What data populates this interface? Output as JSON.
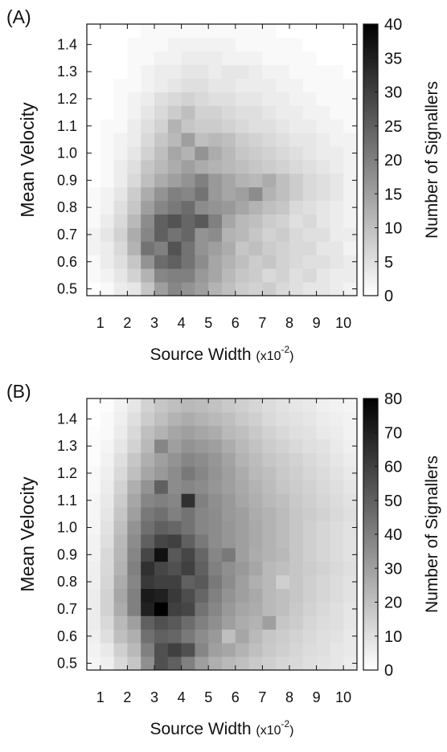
{
  "chart_data": [
    {
      "type": "heatmap",
      "panel_label": "(A)",
      "xlabel": "Source Width",
      "xlabel_unit": "(x10",
      "xlabel_exp": "-2",
      "xlabel_close": ")",
      "ylabel": "Mean Velocity",
      "colorbar_label": "Number of Signallers",
      "x_ticks": [
        "1",
        "2",
        "3",
        "4",
        "5",
        "6",
        "7",
        "8",
        "9",
        "10"
      ],
      "y_ticks": [
        "0.5",
        "0.6",
        "0.7",
        "0.8",
        "0.9",
        "1.0",
        "1.1",
        "1.2",
        "1.3",
        "1.4"
      ],
      "colorbar_ticks": [
        "0",
        "5",
        "10",
        "15",
        "20",
        "25",
        "30",
        "35",
        "40"
      ],
      "colorbar_range": [
        0,
        40
      ],
      "xlim": [
        0.5,
        10.5
      ],
      "ylim": [
        0.475,
        1.475
      ],
      "x_bins": [
        0.75,
        1.25,
        1.75,
        2.25,
        2.75,
        3.25,
        3.75,
        4.25,
        4.75,
        5.25,
        5.75,
        6.25,
        6.75,
        7.25,
        7.75,
        8.25,
        8.75,
        9.25,
        9.75,
        10.25
      ],
      "y_bins": [
        0.5,
        0.55,
        0.6,
        0.65,
        0.7,
        0.75,
        0.8,
        0.85,
        0.9,
        0.95,
        1.0,
        1.05,
        1.1,
        1.15,
        1.2,
        1.25,
        1.3,
        1.35,
        1.4,
        1.45
      ],
      "grayscale": {
        "low": "#ffffff",
        "high": "#000000"
      },
      "values": [
        [
          0,
          1,
          3,
          4,
          9,
          15,
          19,
          17,
          15,
          12,
          10,
          8,
          7,
          8,
          6,
          5,
          4,
          4,
          3,
          2
        ],
        [
          1,
          2,
          4,
          7,
          12,
          19,
          20,
          20,
          16,
          14,
          11,
          9,
          8,
          6,
          7,
          5,
          6,
          4,
          3,
          3
        ],
        [
          1,
          3,
          5,
          9,
          17,
          23,
          25,
          22,
          18,
          14,
          12,
          10,
          8,
          9,
          7,
          6,
          5,
          5,
          4,
          3
        ],
        [
          2,
          3,
          6,
          12,
          22,
          20,
          27,
          22,
          17,
          15,
          13,
          9,
          10,
          8,
          7,
          6,
          6,
          4,
          4,
          2
        ],
        [
          2,
          4,
          7,
          13,
          19,
          25,
          22,
          24,
          17,
          18,
          12,
          11,
          9,
          7,
          8,
          6,
          5,
          5,
          3,
          3
        ],
        [
          1,
          3,
          6,
          11,
          18,
          25,
          27,
          24,
          26,
          20,
          14,
          11,
          10,
          8,
          7,
          5,
          6,
          4,
          3,
          2
        ],
        [
          1,
          2,
          5,
          9,
          15,
          19,
          21,
          23,
          18,
          17,
          16,
          14,
          12,
          10,
          9,
          6,
          5,
          4,
          3,
          2
        ],
        [
          1,
          2,
          4,
          8,
          13,
          17,
          20,
          19,
          22,
          16,
          14,
          15,
          18,
          12,
          10,
          8,
          6,
          5,
          4,
          2
        ],
        [
          0,
          1,
          3,
          6,
          10,
          13,
          15,
          17,
          20,
          16,
          14,
          12,
          11,
          13,
          10,
          8,
          6,
          5,
          4,
          2
        ],
        [
          0,
          1,
          3,
          5,
          9,
          11,
          13,
          15,
          13,
          12,
          11,
          10,
          9,
          8,
          7,
          6,
          5,
          4,
          3,
          2
        ],
        [
          0,
          1,
          2,
          4,
          7,
          10,
          14,
          12,
          17,
          13,
          11,
          9,
          8,
          7,
          6,
          5,
          4,
          3,
          3,
          2
        ],
        [
          0,
          1,
          2,
          3,
          6,
          9,
          11,
          15,
          10,
          11,
          10,
          8,
          7,
          6,
          5,
          4,
          4,
          3,
          2,
          2
        ],
        [
          0,
          1,
          1,
          3,
          5,
          7,
          12,
          9,
          8,
          8,
          7,
          6,
          5,
          5,
          4,
          3,
          3,
          2,
          2,
          1
        ],
        [
          0,
          0,
          1,
          2,
          4,
          6,
          8,
          10,
          7,
          7,
          6,
          5,
          5,
          4,
          3,
          3,
          2,
          2,
          1,
          1
        ],
        [
          0,
          0,
          1,
          2,
          3,
          5,
          6,
          7,
          6,
          5,
          5,
          4,
          4,
          3,
          3,
          2,
          2,
          1,
          1,
          1
        ],
        [
          0,
          0,
          1,
          1,
          2,
          3,
          4,
          5,
          5,
          4,
          4,
          3,
          3,
          3,
          2,
          2,
          1,
          1,
          1,
          1
        ],
        [
          0,
          0,
          0,
          1,
          2,
          3,
          3,
          4,
          4,
          3,
          4,
          4,
          3,
          2,
          2,
          1,
          1,
          1,
          1,
          0
        ],
        [
          0,
          0,
          0,
          1,
          1,
          2,
          2,
          3,
          3,
          3,
          2,
          2,
          2,
          1,
          1,
          1,
          1,
          0,
          0,
          0
        ],
        [
          0,
          0,
          0,
          1,
          1,
          1,
          2,
          2,
          2,
          2,
          2,
          1,
          1,
          1,
          1,
          1,
          0,
          0,
          0,
          0
        ],
        [
          0,
          0,
          0,
          0,
          1,
          1,
          1,
          1,
          1,
          1,
          1,
          1,
          1,
          1,
          0,
          0,
          0,
          0,
          0,
          0
        ]
      ]
    },
    {
      "type": "heatmap",
      "panel_label": "(B)",
      "xlabel": "Source Width",
      "xlabel_unit": "(x10",
      "xlabel_exp": "-2",
      "xlabel_close": ")",
      "ylabel": "Mean Velocity",
      "colorbar_label": "Number of Signallers",
      "x_ticks": [
        "1",
        "2",
        "3",
        "4",
        "5",
        "6",
        "7",
        "8",
        "9",
        "10"
      ],
      "y_ticks": [
        "0.5",
        "0.6",
        "0.7",
        "0.8",
        "0.9",
        "1.0",
        "1.1",
        "1.2",
        "1.3",
        "1.4"
      ],
      "colorbar_ticks": [
        "0",
        "10",
        "20",
        "30",
        "40",
        "50",
        "60",
        "70",
        "80"
      ],
      "colorbar_range": [
        0,
        80
      ],
      "xlim": [
        0.5,
        10.5
      ],
      "ylim": [
        0.475,
        1.475
      ],
      "x_bins": [
        0.75,
        1.25,
        1.75,
        2.25,
        2.75,
        3.25,
        3.75,
        4.25,
        4.75,
        5.25,
        5.75,
        6.25,
        6.75,
        7.25,
        7.75,
        8.25,
        8.75,
        9.25,
        9.75,
        10.25
      ],
      "y_bins": [
        0.5,
        0.55,
        0.6,
        0.65,
        0.7,
        0.75,
        0.8,
        0.85,
        0.9,
        0.95,
        1.0,
        1.05,
        1.1,
        1.15,
        1.2,
        1.25,
        1.3,
        1.35,
        1.4,
        1.45
      ],
      "grayscale": {
        "low": "#ffffff",
        "high": "#000000"
      },
      "values": [
        [
          3,
          5,
          12,
          18,
          35,
          55,
          50,
          40,
          30,
          25,
          22,
          20,
          17,
          15,
          13,
          12,
          10,
          9,
          8,
          6
        ],
        [
          4,
          7,
          15,
          22,
          40,
          55,
          60,
          55,
          38,
          30,
          28,
          24,
          20,
          17,
          15,
          13,
          11,
          10,
          8,
          7
        ],
        [
          5,
          10,
          20,
          25,
          45,
          50,
          48,
          42,
          36,
          32,
          20,
          28,
          22,
          18,
          16,
          14,
          12,
          10,
          9,
          7
        ],
        [
          6,
          12,
          22,
          30,
          50,
          55,
          52,
          46,
          40,
          35,
          30,
          26,
          24,
          30,
          18,
          16,
          13,
          11,
          10,
          8
        ],
        [
          6,
          14,
          26,
          40,
          70,
          80,
          60,
          58,
          44,
          38,
          32,
          28,
          26,
          22,
          20,
          17,
          14,
          12,
          10,
          8
        ],
        [
          6,
          14,
          28,
          40,
          72,
          70,
          62,
          56,
          48,
          40,
          34,
          30,
          27,
          22,
          20,
          18,
          15,
          13,
          11,
          9
        ],
        [
          5,
          13,
          26,
          38,
          62,
          60,
          60,
          50,
          52,
          42,
          36,
          30,
          25,
          22,
          15,
          18,
          15,
          13,
          11,
          9
        ],
        [
          5,
          12,
          24,
          40,
          65,
          58,
          55,
          60,
          50,
          40,
          35,
          32,
          28,
          22,
          20,
          18,
          16,
          14,
          12,
          10
        ],
        [
          4,
          12,
          23,
          38,
          58,
          75,
          52,
          58,
          48,
          38,
          42,
          30,
          26,
          24,
          22,
          18,
          15,
          13,
          11,
          9
        ],
        [
          4,
          10,
          22,
          36,
          50,
          58,
          60,
          50,
          42,
          36,
          33,
          30,
          27,
          24,
          21,
          18,
          15,
          13,
          11,
          9
        ],
        [
          3,
          9,
          20,
          34,
          45,
          50,
          48,
          44,
          38,
          36,
          33,
          30,
          27,
          24,
          21,
          18,
          15,
          13,
          11,
          9
        ],
        [
          3,
          8,
          18,
          30,
          42,
          45,
          40,
          44,
          38,
          36,
          32,
          30,
          26,
          24,
          21,
          18,
          16,
          14,
          12,
          10
        ],
        [
          3,
          7,
          16,
          28,
          38,
          40,
          38,
          65,
          40,
          35,
          32,
          28,
          25,
          22,
          20,
          17,
          15,
          13,
          11,
          9
        ],
        [
          2,
          6,
          14,
          25,
          34,
          50,
          36,
          38,
          36,
          33,
          30,
          27,
          24,
          21,
          18,
          16,
          14,
          12,
          10,
          8
        ],
        [
          2,
          5,
          12,
          20,
          28,
          32,
          36,
          42,
          38,
          34,
          30,
          26,
          22,
          20,
          17,
          15,
          13,
          11,
          9,
          7
        ],
        [
          1,
          4,
          10,
          18,
          25,
          30,
          34,
          38,
          36,
          33,
          29,
          24,
          21,
          18,
          16,
          14,
          12,
          10,
          8,
          6
        ],
        [
          1,
          3,
          8,
          14,
          22,
          38,
          30,
          34,
          32,
          30,
          26,
          22,
          19,
          16,
          14,
          12,
          10,
          9,
          7,
          5
        ],
        [
          1,
          2,
          6,
          12,
          20,
          24,
          28,
          30,
          28,
          26,
          22,
          20,
          17,
          14,
          12,
          10,
          9,
          7,
          6,
          4
        ],
        [
          0,
          2,
          5,
          10,
          16,
          20,
          24,
          26,
          24,
          22,
          20,
          17,
          15,
          12,
          10,
          9,
          8,
          6,
          5,
          4
        ],
        [
          0,
          1,
          4,
          8,
          14,
          18,
          20,
          22,
          21,
          19,
          17,
          15,
          13,
          11,
          9,
          8,
          7,
          5,
          4,
          3
        ]
      ]
    }
  ]
}
